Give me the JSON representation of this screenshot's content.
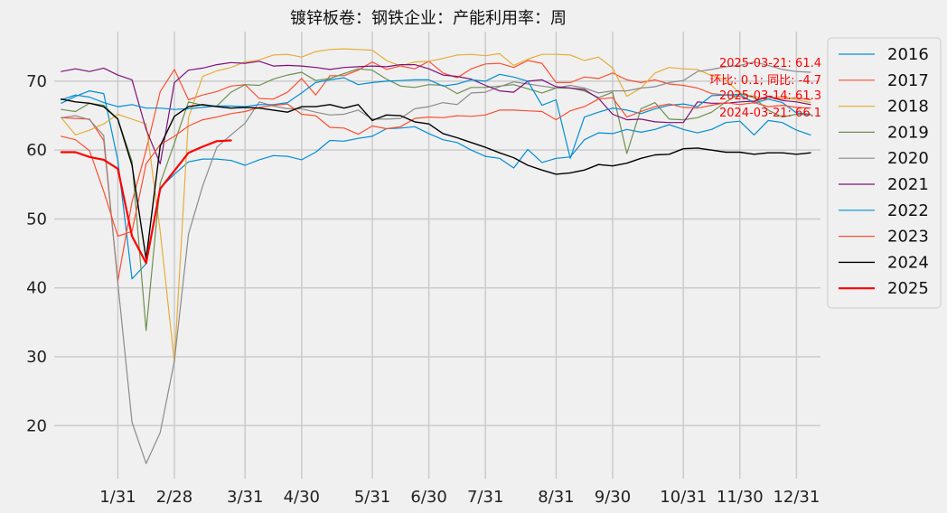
{
  "chart_data": {
    "type": "line",
    "title": "镀锌板卷：钢铁企业：产能利用率：周",
    "xlabel": "",
    "ylabel": "",
    "x_ticks": [
      {
        "label": "1/31",
        "week": 4
      },
      {
        "label": "2/28",
        "week": 8
      },
      {
        "label": "3/31",
        "week": 13
      },
      {
        "label": "4/30",
        "week": 17
      },
      {
        "label": "5/31",
        "week": 22
      },
      {
        "label": "6/30",
        "week": 26
      },
      {
        "label": "7/31",
        "week": 30
      },
      {
        "label": "8/31",
        "week": 35
      },
      {
        "label": "9/30",
        "week": 39
      },
      {
        "label": "10/31",
        "week": 44
      },
      {
        "label": "11/30",
        "week": 48
      },
      {
        "label": "12/31",
        "week": 52
      }
    ],
    "xlim": [
      -0.5,
      53.7
    ],
    "ylim": [
      12.3,
      77.2
    ],
    "yticks": [
      20,
      30,
      40,
      50,
      60,
      70
    ],
    "grid": true,
    "legend_position": "outside-right",
    "series": [
      {
        "name": "2016",
        "color": "#008fd5",
        "width": 1.2,
        "values": [
          66.8,
          67.8,
          68.6,
          68.2,
          58.5,
          41.3,
          43.5,
          54.5,
          56.5,
          58.3,
          58.7,
          58.7,
          58.5,
          57.8,
          58.6,
          59.2,
          59.1,
          58.6,
          59.7,
          61.4,
          61.3,
          61.7,
          62.0,
          63.1,
          63.2,
          63.4,
          62.4,
          61.5,
          61.1,
          60.0,
          59.1,
          58.8,
          57.4,
          60.1,
          58.2,
          58.8,
          59.0,
          61.5,
          62.5,
          62.4,
          63.0,
          62.6,
          63.0,
          63.7,
          63.0,
          62.5,
          63.0,
          64.0,
          64.2,
          62.2,
          64.3,
          64.0,
          62.9,
          62.2
        ]
      },
      {
        "name": "2017",
        "color": "#fc4f30",
        "width": 1.2,
        "values": [
          64.7,
          64.6,
          64.5,
          61.4,
          41.0,
          52.5,
          60.0,
          68.5,
          71.7,
          67.3,
          68.0,
          68.5,
          69.3,
          69.5,
          67.5,
          67.4,
          68.4,
          70.4,
          68.0,
          70.8,
          70.8,
          71.6,
          72.8,
          71.7,
          72.2,
          71.8,
          72.9,
          71.2,
          70.5,
          71.8,
          72.5,
          72.6,
          72.0,
          73.0,
          72.6,
          69.8,
          69.8,
          70.6,
          70.4,
          71.2,
          70.2,
          69.8,
          70.2,
          69.6,
          69.4,
          69.0,
          68.2,
          68.0,
          67.8,
          67.0,
          67.8,
          67.4,
          67.6,
          67.3
        ]
      },
      {
        "name": "2018",
        "color": "#e5ae38",
        "width": 1.2,
        "values": [
          64.7,
          62.2,
          62.9,
          63.8,
          65.2,
          64.5,
          63.8,
          48.2,
          29.2,
          64.7,
          70.7,
          71.5,
          72.0,
          72.8,
          73.1,
          73.8,
          73.9,
          73.5,
          74.3,
          74.6,
          74.7,
          74.6,
          74.5,
          73.0,
          72.2,
          72.8,
          72.9,
          73.3,
          73.8,
          73.9,
          73.7,
          74.0,
          72.3,
          73.2,
          73.9,
          73.9,
          73.8,
          73.0,
          73.5,
          71.9,
          67.8,
          69.0,
          71.2,
          72.0,
          71.8,
          71.7,
          70.8,
          70.2,
          68.2,
          67.8,
          67.5,
          67.8,
          67.3,
          66.9
        ]
      },
      {
        "name": "2019",
        "color": "#6d904f",
        "width": 1.2,
        "values": [
          65.9,
          65.6,
          66.8,
          66.5,
          64.5,
          58.4,
          33.8,
          55.2,
          61.0,
          67.0,
          66.5,
          66.4,
          68.4,
          69.5,
          69.4,
          70.3,
          70.9,
          71.3,
          70.1,
          70.4,
          71.1,
          71.8,
          71.6,
          70.3,
          69.3,
          69.1,
          69.5,
          69.4,
          68.2,
          69.1,
          69.1,
          69.3,
          69.5,
          68.9,
          68.3,
          69.0,
          69.0,
          68.6,
          67.6,
          68.4,
          59.5,
          66.0,
          66.9,
          64.5,
          64.4,
          64.7,
          65.5,
          67.0,
          68.2,
          67.6,
          65.8,
          64.8,
          65.2,
          65.1
        ]
      },
      {
        "name": "2020",
        "color": "#8b8b8b",
        "width": 1.2,
        "values": [
          64.7,
          65.0,
          64.4,
          62.1,
          40.7,
          20.5,
          14.5,
          19.0,
          29.4,
          47.8,
          54.8,
          60.4,
          62.2,
          63.9,
          67.0,
          66.4,
          66.0,
          66.0,
          65.5,
          65.1,
          65.2,
          65.8,
          64.5,
          64.5,
          64.6,
          66.0,
          66.3,
          66.9,
          66.6,
          68.3,
          68.4,
          69.2,
          69.9,
          69.6,
          69.3,
          69.0,
          69.4,
          69.0,
          68.3,
          68.6,
          68.6,
          69.0,
          69.2,
          69.8,
          70.1,
          71.4,
          71.7,
          72.1,
          72.3,
          72.8,
          72.3,
          71.7,
          71.4,
          71.3
        ]
      },
      {
        "name": "2021",
        "color": "#810f7c",
        "width": 1.2,
        "values": [
          71.4,
          71.8,
          71.4,
          71.9,
          70.9,
          70.2,
          63.0,
          58.0,
          69.8,
          71.6,
          71.9,
          72.4,
          72.7,
          72.6,
          72.9,
          72.2,
          72.3,
          72.2,
          72.0,
          71.7,
          72.0,
          72.1,
          72.2,
          72.1,
          72.4,
          72.4,
          71.8,
          70.9,
          70.7,
          70.3,
          69.4,
          68.6,
          68.4,
          70.0,
          70.2,
          69.2,
          69.0,
          68.8,
          67.5,
          65.2,
          64.4,
          64.5,
          64.1,
          64.0,
          64.0,
          67.0,
          66.8,
          66.8,
          67.0,
          67.1,
          67.8,
          67.2,
          67.0,
          66.6
        ]
      },
      {
        "name": "2022",
        "color": "#008fd5",
        "width": 1.2,
        "values": [
          67.3,
          68.0,
          67.7,
          66.9,
          66.3,
          66.6,
          66.1,
          66.1,
          65.9,
          66.0,
          66.2,
          66.4,
          66.4,
          66.3,
          66.6,
          66.6,
          66.9,
          68.3,
          69.8,
          70.2,
          70.5,
          69.5,
          69.8,
          70.0,
          70.1,
          70.2,
          70.2,
          69.3,
          69.6,
          70.2,
          70.0,
          71.0,
          70.6,
          70.0,
          66.5,
          67.3,
          58.8,
          64.8,
          65.5,
          66.1,
          65.8,
          65.3,
          66.0,
          66.5,
          66.7,
          66.3,
          67.9,
          68.0,
          68.1,
          66.8,
          67.4,
          66.9,
          65.4,
          65.2
        ]
      },
      {
        "name": "2023",
        "color": "#fc4f30",
        "width": 1.2,
        "values": [
          62.0,
          61.5,
          59.9,
          54.0,
          47.5,
          48.2,
          58.0,
          60.8,
          62.0,
          63.5,
          64.4,
          64.8,
          65.3,
          65.6,
          66.2,
          66.5,
          66.7,
          65.2,
          65.0,
          63.3,
          63.2,
          62.3,
          63.5,
          63.1,
          63.4,
          64.6,
          64.8,
          64.7,
          65.0,
          64.9,
          65.1,
          65.8,
          65.8,
          65.7,
          65.6,
          64.4,
          65.7,
          66.3,
          67.4,
          67.6,
          64.8,
          65.6,
          66.3,
          66.7,
          66.2,
          66.1,
          66.5,
          66.9,
          66.6,
          66.9,
          66.3,
          66.5,
          66.2,
          66.1
        ]
      },
      {
        "name": "2024",
        "color": "#000000",
        "width": 1.4,
        "values": [
          67.4,
          67.0,
          66.8,
          66.3,
          64.5,
          57.8,
          44.2,
          60.6,
          64.9,
          66.3,
          66.6,
          66.3,
          66.1,
          66.2,
          66.1,
          65.8,
          65.5,
          66.3,
          66.3,
          66.6,
          66.1,
          66.6,
          64.3,
          65.1,
          65.0,
          64.1,
          63.8,
          62.4,
          61.8,
          61.1,
          60.4,
          59.6,
          58.9,
          57.8,
          57.1,
          56.5,
          56.7,
          57.1,
          57.9,
          57.7,
          58.1,
          58.8,
          59.3,
          59.4,
          60.2,
          60.3,
          60.0,
          59.7,
          59.7,
          59.4,
          59.6,
          59.6,
          59.4,
          59.6
        ]
      },
      {
        "name": "2025",
        "color": "#ff0000",
        "width": 2.2,
        "values": [
          59.7,
          59.7,
          59.0,
          58.6,
          57.3,
          47.5,
          43.6,
          54.4,
          57.0,
          59.6,
          60.5,
          61.3,
          61.4
        ]
      }
    ],
    "annotations": [
      "2025-03-21: 61.4",
      "环比: 0.1; 同比: -4.7",
      "2025-03-14: 61.3",
      "2024-03-21: 66.1"
    ]
  }
}
